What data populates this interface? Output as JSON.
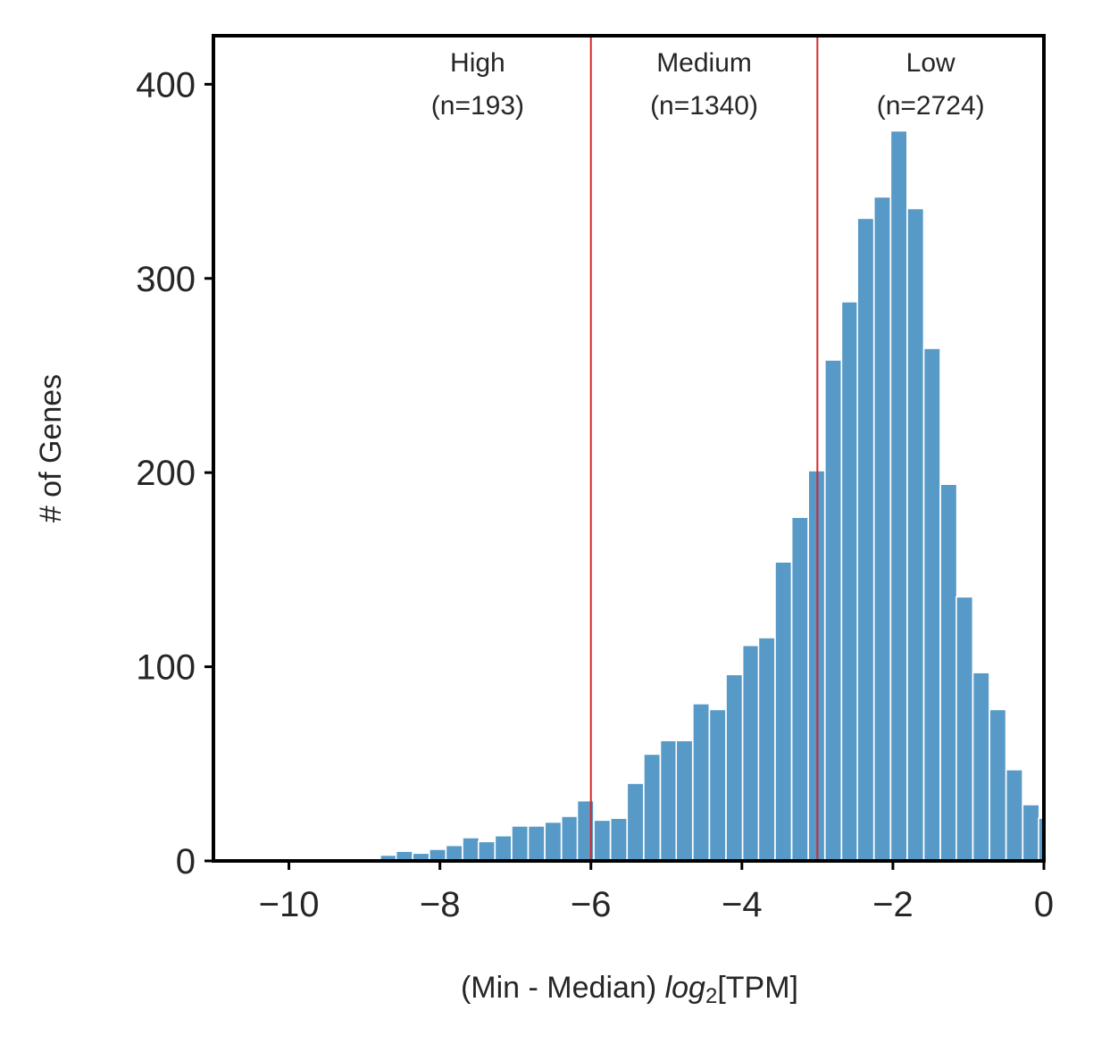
{
  "chart_data": {
    "type": "bar",
    "title": "",
    "xlabel": {
      "prefix": "(Min - Median) ",
      "italic": "log",
      "subscript": "2",
      "suffix": "[TPM]"
    },
    "ylabel": "# of Genes",
    "xlim": [
      -11.0,
      0.0
    ],
    "ylim": [
      0,
      425
    ],
    "xticks": [
      {
        "value": -10,
        "label": "−10"
      },
      {
        "value": -8,
        "label": "−8"
      },
      {
        "value": -6,
        "label": "−6"
      },
      {
        "value": -4,
        "label": "−4"
      },
      {
        "value": -2,
        "label": "−2"
      },
      {
        "value": 0,
        "label": "0"
      }
    ],
    "yticks": [
      {
        "value": 0,
        "label": "0"
      },
      {
        "value": 100,
        "label": "100"
      },
      {
        "value": 200,
        "label": "200"
      },
      {
        "value": 300,
        "label": "300"
      },
      {
        "value": 400,
        "label": "400"
      }
    ],
    "bar_color": "#5799c7",
    "bin_width": 0.2182,
    "bin_starts": [
      -10.54,
      -10.32,
      -10.1,
      -9.89,
      -9.67,
      -9.45,
      -9.23,
      -9.01,
      -8.79,
      -8.58,
      -8.36,
      -8.14,
      -7.92,
      -7.7,
      -7.49,
      -7.27,
      -7.05,
      -6.83,
      -6.61,
      -6.39,
      -6.18,
      -5.96,
      -5.74,
      -5.52,
      -5.3,
      -5.08,
      -4.87,
      -4.65,
      -4.43,
      -4.21,
      -3.99,
      -3.78,
      -3.56,
      -3.34,
      -3.12,
      -2.9,
      -2.68,
      -2.47,
      -2.25,
      -2.03,
      -1.81,
      -1.59,
      -1.37,
      -1.16,
      -0.94,
      -0.72,
      -0.5,
      -0.28,
      -0.07
    ],
    "counts": [
      1,
      1,
      1,
      1,
      1,
      1,
      1,
      1,
      3,
      5,
      4,
      6,
      8,
      12,
      10,
      13,
      18,
      18,
      20,
      23,
      31,
      21,
      22,
      40,
      55,
      62,
      62,
      81,
      78,
      96,
      111,
      115,
      154,
      177,
      201,
      258,
      288,
      331,
      342,
      376,
      336,
      264,
      194,
      136,
      97,
      78,
      47,
      29,
      22
    ],
    "thresholds": [
      {
        "value": -6.0,
        "color": "#d62728"
      },
      {
        "value": -3.0,
        "color": "#d62728"
      }
    ],
    "regions": [
      {
        "name": "High",
        "count_label": "(n=193)",
        "center": -7.5
      },
      {
        "name": "Medium",
        "count_label": "(n=1340)",
        "center": -4.5
      },
      {
        "name": "Low",
        "count_label": "(n=2724)",
        "center": -1.5
      }
    ],
    "grid": false,
    "legend": "none"
  }
}
